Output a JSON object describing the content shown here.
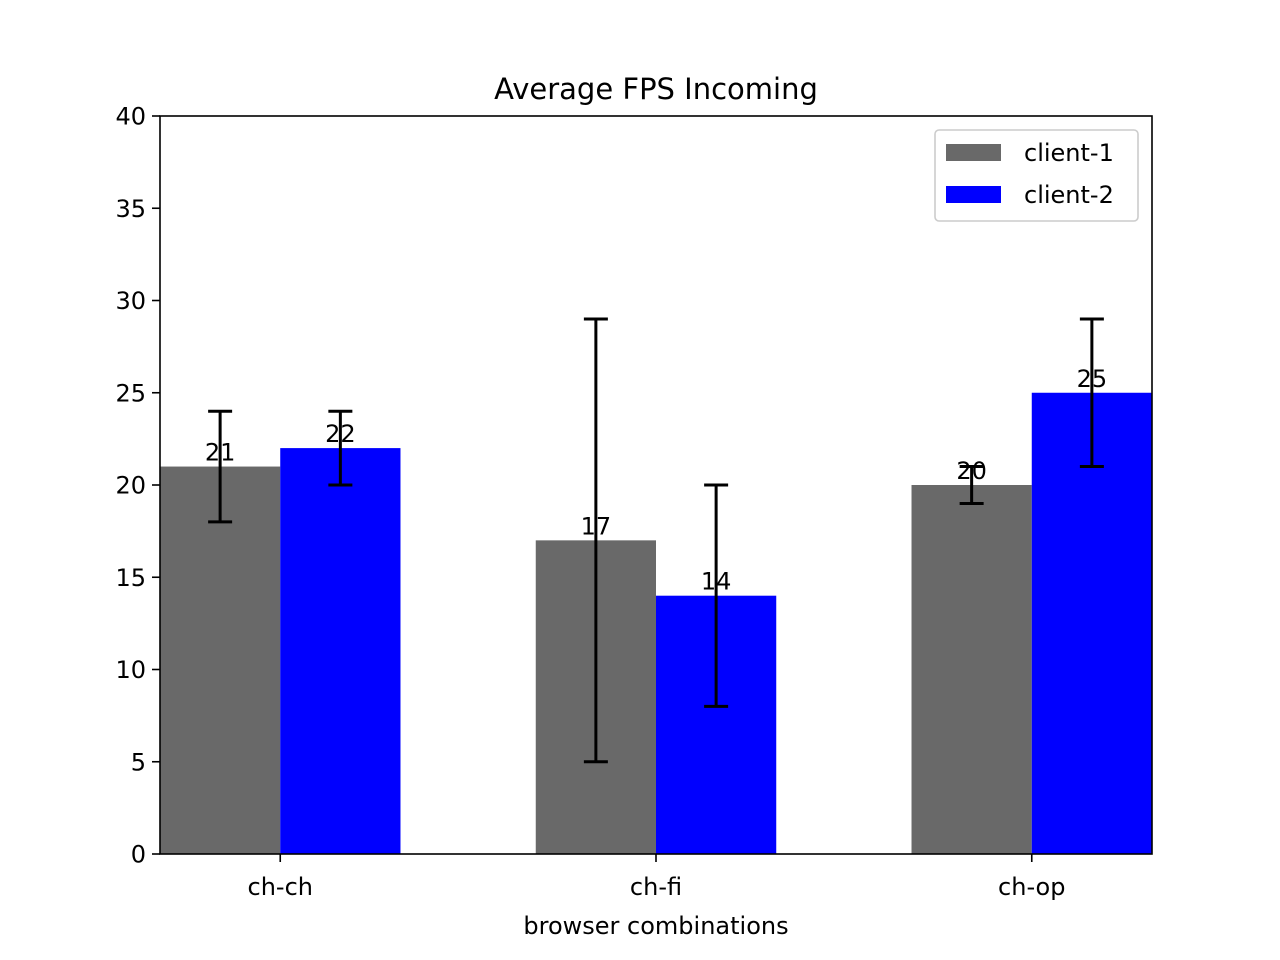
{
  "chart_data": {
    "type": "bar",
    "title": "Average FPS Incoming",
    "xlabel": "browser combinations",
    "ylabel": "",
    "categories": [
      "ch-ch",
      "ch-fi",
      "ch-op"
    ],
    "ylim": [
      0,
      40
    ],
    "yticks": [
      0,
      5,
      10,
      15,
      20,
      25,
      30,
      35,
      40
    ],
    "grid": false,
    "legend": "top-right",
    "series": [
      {
        "name": "client-1",
        "color": "#696969",
        "values": [
          21,
          17,
          20
        ],
        "error_low": [
          18,
          5,
          19
        ],
        "error_high": [
          24,
          29,
          21
        ]
      },
      {
        "name": "client-2",
        "color": "#0000ff",
        "values": [
          22,
          14,
          25
        ],
        "error_low": [
          20,
          8,
          21
        ],
        "error_high": [
          24,
          20,
          29
        ]
      }
    ]
  }
}
